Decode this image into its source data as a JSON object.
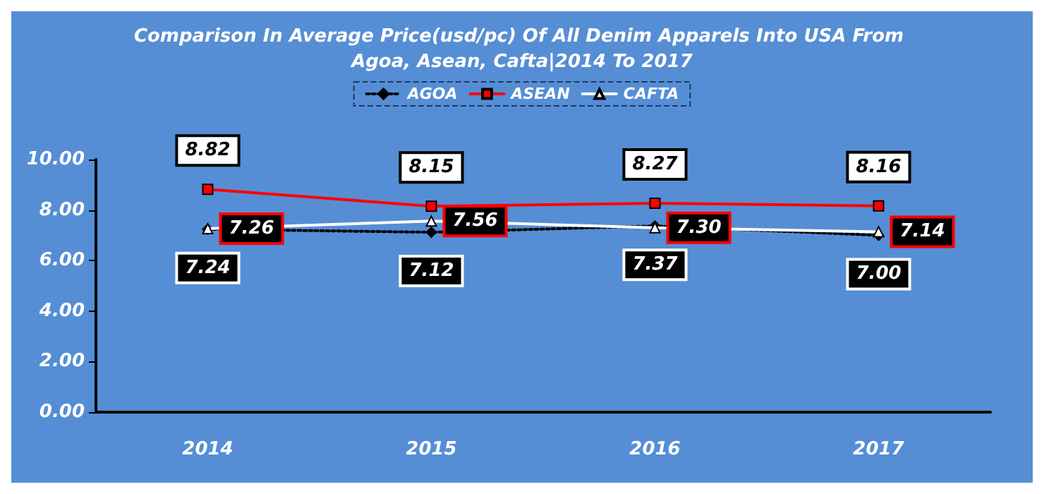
{
  "chart_data": {
    "type": "line",
    "title": "Comparison In Average Price(usd/pc) Of All Denim Apparels Into USA From Agoa, Asean, Cafta|2014 To 2017",
    "categories": [
      "2014",
      "2015",
      "2016",
      "2017"
    ],
    "series": [
      {
        "name": "AGOA",
        "color": "#000000",
        "marker": "diamond",
        "line_style": "dotted",
        "values": [
          7.24,
          7.12,
          7.37,
          7.0
        ],
        "value_labels": [
          "7.24",
          "7.12",
          "7.37",
          "7.00"
        ]
      },
      {
        "name": "ASEAN",
        "color": "#ff0000",
        "marker": "square",
        "line_style": "solid",
        "values": [
          8.82,
          8.15,
          8.27,
          8.16
        ],
        "value_labels": [
          "8.82",
          "8.15",
          "8.27",
          "8.16"
        ]
      },
      {
        "name": "CAFTA",
        "color": "#ffffff",
        "marker": "triangle",
        "line_style": "solid",
        "values": [
          7.26,
          7.56,
          7.3,
          7.14
        ],
        "value_labels": [
          "7.26",
          "7.56",
          "7.30",
          "7.14"
        ]
      }
    ],
    "ylim": [
      0,
      10
    ],
    "yticks": [
      {
        "value": 0,
        "label": "0.00"
      },
      {
        "value": 2,
        "label": "2.00"
      },
      {
        "value": 4,
        "label": "4.00"
      },
      {
        "value": 6,
        "label": "6.00"
      },
      {
        "value": 8,
        "label": "8.00"
      },
      {
        "value": 10,
        "label": "10.00"
      }
    ],
    "grid": false,
    "legend": "top"
  }
}
